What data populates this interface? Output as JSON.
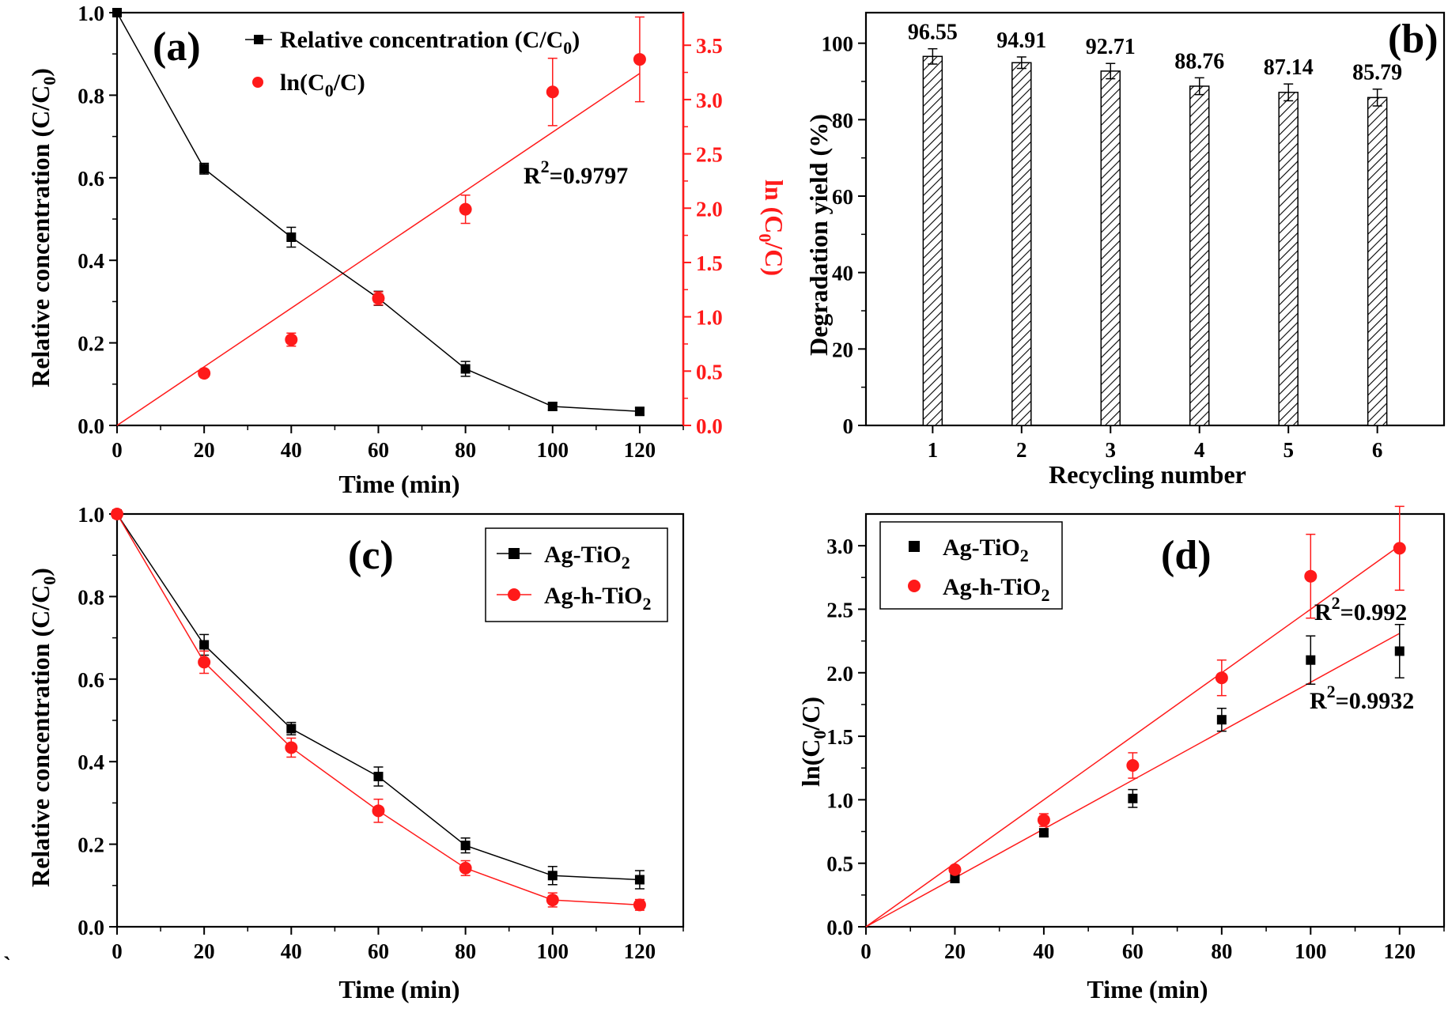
{
  "colors": {
    "black": "#000000",
    "red": "#ff1a1a"
  },
  "stray_mark": "`",
  "chart_data": [
    {
      "panel": "(a)",
      "type": "line",
      "xlabel": "Time (min)",
      "ylabel": "Relative concentration (C/C0)",
      "ylabel_right": "ln (C0/C)",
      "xlim": [
        0,
        130
      ],
      "ylim": [
        0,
        1.0
      ],
      "ylim_right": [
        0,
        3.8
      ],
      "x_ticks": [
        "0",
        "20",
        "40",
        "60",
        "80",
        "100",
        "120"
      ],
      "y_ticks": [
        "0.0",
        "0.2",
        "0.4",
        "0.6",
        "0.8",
        "1.0"
      ],
      "y_right_ticks": [
        "0.0",
        "0.5",
        "1.0",
        "1.5",
        "2.0",
        "2.5",
        "3.0",
        "3.5"
      ],
      "legend": [
        "Relative concentration (C/C0)",
        "ln(C0/C)"
      ],
      "r2_label": "R2=0.9797",
      "series": [
        {
          "name": "Relative concentration (C/C0)",
          "axis": "left",
          "color": "#000000",
          "marker": "square",
          "line": true,
          "x": [
            0,
            20,
            40,
            60,
            80,
            100,
            120
          ],
          "y": [
            1.0,
            0.622,
            0.456,
            0.308,
            0.137,
            0.046,
            0.034
          ],
          "err": [
            0,
            0.013,
            0.024,
            0.017,
            0.018,
            0.009,
            0.009
          ]
        },
        {
          "name": "ln(C0/C)",
          "axis": "right",
          "color": "#ff1a1a",
          "marker": "circle",
          "line": false,
          "x": [
            20,
            40,
            60,
            80,
            100,
            120
          ],
          "y": [
            0.48,
            0.79,
            1.17,
            1.99,
            3.07,
            3.37
          ],
          "err": [
            0.02,
            0.06,
            0.06,
            0.13,
            0.31,
            0.39
          ]
        }
      ],
      "fit": {
        "color": "#ff1a1a",
        "x": [
          0,
          120
        ],
        "y": [
          0,
          3.24
        ],
        "axis": "right"
      }
    },
    {
      "panel": "(b)",
      "type": "bar",
      "xlabel": "Recycling number",
      "ylabel": "Degradation yield (%)",
      "ylim": [
        0,
        108
      ],
      "categories": [
        "1",
        "2",
        "3",
        "4",
        "5",
        "6"
      ],
      "y_ticks": [
        "0",
        "20",
        "40",
        "60",
        "80",
        "100"
      ],
      "values": [
        96.55,
        94.91,
        92.71,
        88.76,
        87.14,
        85.79
      ],
      "value_labels": [
        "96.55",
        "94.91",
        "92.71",
        "88.76",
        "87.14",
        "85.79"
      ],
      "err": [
        2.0,
        1.5,
        2.0,
        2.2,
        2.2,
        2.2
      ],
      "fill": "hatched"
    },
    {
      "panel": "(c)",
      "type": "line",
      "xlabel": "Time (min)",
      "ylabel": "Relative concentration (C/C0)",
      "xlim": [
        0,
        130
      ],
      "ylim": [
        0,
        1.0
      ],
      "x_ticks": [
        "0",
        "20",
        "40",
        "60",
        "80",
        "100",
        "120"
      ],
      "y_ticks": [
        "0.0",
        "0.2",
        "0.4",
        "0.6",
        "0.8",
        "1.0"
      ],
      "legend": [
        "Ag-TiO2",
        "Ag-h-TiO2"
      ],
      "series": [
        {
          "name": "Ag-TiO2",
          "color": "#000000",
          "marker": "square",
          "line": true,
          "x": [
            0,
            20,
            40,
            60,
            80,
            100,
            120
          ],
          "y": [
            1.0,
            0.683,
            0.48,
            0.364,
            0.197,
            0.124,
            0.114
          ],
          "err": [
            0,
            0.025,
            0.015,
            0.023,
            0.018,
            0.022,
            0.022
          ]
        },
        {
          "name": "Ag-h-TiO2",
          "color": "#ff1a1a",
          "marker": "circle",
          "line": true,
          "x": [
            0,
            20,
            40,
            60,
            80,
            100,
            120
          ],
          "y": [
            1.0,
            0.641,
            0.434,
            0.281,
            0.142,
            0.065,
            0.053
          ],
          "err": [
            0,
            0.027,
            0.023,
            0.028,
            0.018,
            0.017,
            0.013
          ]
        }
      ]
    },
    {
      "panel": "(d)",
      "type": "scatter",
      "xlabel": "Time (min)",
      "ylabel": "ln(C0/C)",
      "xlim": [
        0,
        130
      ],
      "ylim": [
        0,
        3.25
      ],
      "x_ticks": [
        "0",
        "20",
        "40",
        "60",
        "80",
        "100",
        "120"
      ],
      "y_ticks": [
        "0.0",
        "0.5",
        "1.0",
        "1.5",
        "2.0",
        "2.5",
        "3.0"
      ],
      "legend": [
        "Ag-TiO2",
        "Ag-h-TiO2"
      ],
      "r2_labels": [
        "R2=0.992",
        "R2=0.9932"
      ],
      "series": [
        {
          "name": "Ag-TiO2",
          "color": "#000000",
          "marker": "square",
          "line": false,
          "x": [
            20,
            40,
            60,
            80,
            100,
            120
          ],
          "y": [
            0.38,
            0.74,
            1.01,
            1.63,
            2.1,
            2.17
          ],
          "err": [
            0.03,
            0.03,
            0.07,
            0.09,
            0.19,
            0.21
          ]
        },
        {
          "name": "Ag-h-TiO2",
          "color": "#ff1a1a",
          "marker": "circle",
          "line": false,
          "x": [
            20,
            40,
            60,
            80,
            100,
            120
          ],
          "y": [
            0.45,
            0.84,
            1.27,
            1.96,
            2.76,
            2.98
          ],
          "err": [
            0.02,
            0.05,
            0.1,
            0.14,
            0.33,
            0.33
          ]
        }
      ],
      "fits": [
        {
          "color": "#ff1a1a",
          "x": [
            0,
            120
          ],
          "y": [
            0,
            3.0
          ]
        },
        {
          "color": "#ff1a1a",
          "x": [
            0,
            120
          ],
          "y": [
            0,
            2.31
          ]
        }
      ]
    }
  ]
}
